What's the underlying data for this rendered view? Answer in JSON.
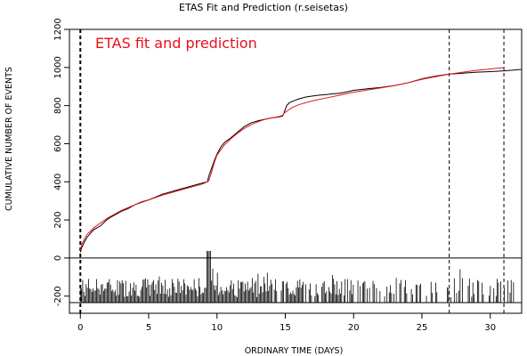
{
  "chart_data": {
    "type": "line",
    "title": "ETAS Fit and Prediction (r.seisetas)",
    "annotation": "ETAS fit and prediction",
    "xlabel": "ORDINARY TIME (DAYS)",
    "ylabel": "CUMULATIVE NUMBER OF EVENTS",
    "xlim": [
      -0.8,
      32.3
    ],
    "ylim": [
      -290,
      1200
    ],
    "x_ticks": [
      0,
      5,
      10,
      15,
      20,
      25,
      30
    ],
    "y_ticks": [
      -200,
      0,
      200,
      400,
      600,
      800,
      1000,
      1200
    ],
    "grid": false,
    "vertical_lines": [
      0,
      27,
      31
    ],
    "horizontal_lines": [
      0
    ],
    "colors": {
      "observed": "#000000",
      "model": "#e8101a",
      "annotation": "#e8101a"
    },
    "series": [
      {
        "role": "observed",
        "x": [
          0,
          0.1,
          0.3,
          0.5,
          0.8,
          1,
          1.5,
          2,
          2.5,
          3,
          3.5,
          4,
          4.5,
          5,
          5.5,
          6,
          6.5,
          7,
          7.5,
          8,
          8.5,
          9,
          9.3,
          9.4,
          9.6,
          9.8,
          10,
          10.3,
          10.6,
          11,
          11.5,
          12,
          12.5,
          13,
          13.5,
          14,
          14.5,
          14.8,
          14.9,
          15.1,
          15.3,
          15.6,
          16,
          16.5,
          17,
          17.5,
          18,
          18.5,
          19,
          19.5,
          20,
          21,
          22,
          23,
          24,
          25,
          26,
          27,
          28,
          29,
          30,
          31,
          32.3
        ],
        "y": [
          30,
          55,
          85,
          110,
          135,
          150,
          170,
          205,
          225,
          245,
          260,
          280,
          295,
          305,
          320,
          335,
          345,
          355,
          365,
          375,
          385,
          395,
          400,
          430,
          470,
          510,
          545,
          585,
          610,
          630,
          660,
          690,
          710,
          720,
          728,
          735,
          740,
          745,
          760,
          800,
          815,
          825,
          835,
          845,
          850,
          855,
          858,
          862,
          865,
          872,
          880,
          888,
          895,
          905,
          920,
          940,
          955,
          965,
          970,
          975,
          978,
          982,
          990
        ]
      },
      {
        "role": "model",
        "x": [
          0,
          0.1,
          0.3,
          0.5,
          0.8,
          1,
          1.5,
          2,
          2.5,
          3,
          4,
          5,
          6,
          7,
          8,
          9,
          9.4,
          9.6,
          9.8,
          10,
          10.5,
          11,
          11.5,
          12,
          12.5,
          13,
          13.5,
          14,
          14.5,
          14.8,
          14.9,
          15.2,
          15.5,
          16,
          17,
          18,
          19,
          20,
          21,
          22,
          23,
          24,
          25,
          26,
          27,
          28,
          29,
          30,
          31
        ],
        "y": [
          40,
          70,
          100,
          125,
          145,
          160,
          185,
          210,
          230,
          250,
          280,
          305,
          330,
          350,
          370,
          390,
          405,
          450,
          500,
          540,
          590,
          625,
          655,
          680,
          700,
          715,
          728,
          735,
          742,
          748,
          760,
          775,
          790,
          805,
          825,
          840,
          855,
          870,
          882,
          893,
          905,
          920,
          938,
          952,
          965,
          975,
          985,
          992,
          1000
        ]
      }
    ]
  }
}
